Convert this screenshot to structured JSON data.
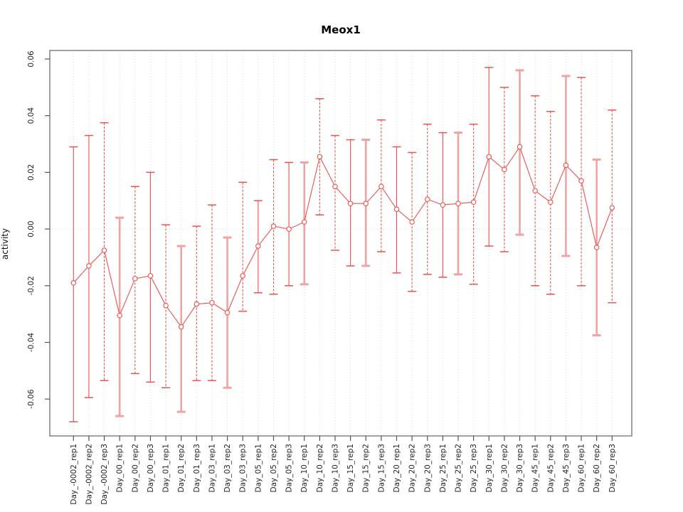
{
  "chart_data": {
    "type": "line",
    "title": "Meox1",
    "xlabel": "",
    "ylabel": "activity",
    "ylim": [
      -0.073,
      0.063
    ],
    "yticks": [
      -0.06,
      -0.04,
      -0.02,
      0.0,
      0.02,
      0.04,
      0.06
    ],
    "ytick_labels": [
      "-0.06",
      "-0.04",
      "-0.02",
      "0.00",
      "0.02",
      "0.04",
      "0.06"
    ],
    "grid": {
      "vertical_dotted_per_category": true,
      "horizontal_dotted_zero_line": true,
      "grid_color": "#d9d9d9"
    },
    "legend": "none",
    "marker": "open-circle",
    "error_bars": true,
    "series_color": "#e9534f",
    "thick_bar_color": "#f2a2a2",
    "categories": [
      "Day_-0002_rep1",
      "Day_-0002_rep2",
      "Day_-0002_rep3",
      "Day_00_rep1",
      "Day_00_rep2",
      "Day_00_rep3",
      "Day_01_rep1",
      "Day_01_rep2",
      "Day_01_rep3",
      "Day_03_rep1",
      "Day_03_rep2",
      "Day_03_rep3",
      "Day_05_rep1",
      "Day_05_rep2",
      "Day_05_rep3",
      "Day_10_rep1",
      "Day_10_rep2",
      "Day_10_rep3",
      "Day_15_rep1",
      "Day_15_rep2",
      "Day_15_rep3",
      "Day_20_rep1",
      "Day_20_rep2",
      "Day_20_rep3",
      "Day_25_rep1",
      "Day_25_rep2",
      "Day_25_rep3",
      "Day_30_rep1",
      "Day_30_rep2",
      "Day_30_rep3",
      "Day_45_rep1",
      "Day_45_rep2",
      "Day_45_rep3",
      "Day_60_rep1",
      "Day_60_rep2",
      "Day_60_rep3"
    ],
    "series": [
      {
        "name": "activity",
        "values": [
          -0.019,
          -0.013,
          -0.0075,
          -0.0305,
          -0.0175,
          -0.0165,
          -0.027,
          -0.0345,
          -0.0265,
          -0.026,
          -0.0295,
          -0.0165,
          -0.006,
          0.001,
          0.0,
          0.0025,
          0.0255,
          0.015,
          0.009,
          0.009,
          0.015,
          0.007,
          0.0025,
          0.0105,
          0.0085,
          0.009,
          0.0095,
          0.0255,
          0.021,
          0.029,
          0.0135,
          0.0095,
          0.0225,
          0.017,
          -0.0065,
          0.0075
        ],
        "upper": [
          0.029,
          0.033,
          0.0375,
          0.004,
          0.015,
          0.02,
          0.0015,
          -0.006,
          0.001,
          0.0085,
          -0.003,
          0.0165,
          0.01,
          0.0245,
          0.0235,
          0.0235,
          0.046,
          0.033,
          0.0315,
          0.0315,
          0.0385,
          0.029,
          0.027,
          0.037,
          0.034,
          0.034,
          0.037,
          0.057,
          0.05,
          0.056,
          0.047,
          0.0415,
          0.054,
          0.0535,
          0.0245,
          0.042
        ],
        "lower": [
          -0.068,
          -0.0595,
          -0.0535,
          -0.066,
          -0.051,
          -0.054,
          -0.056,
          -0.0645,
          -0.0535,
          -0.0535,
          -0.056,
          -0.029,
          -0.0225,
          -0.023,
          -0.02,
          -0.0195,
          0.005,
          -0.0075,
          -0.013,
          -0.013,
          -0.008,
          -0.0155,
          -0.022,
          -0.016,
          -0.017,
          -0.016,
          -0.0195,
          -0.006,
          -0.008,
          -0.002,
          -0.02,
          -0.023,
          -0.0095,
          -0.02,
          -0.0375,
          -0.026
        ],
        "bar_styles": [
          "solid",
          "solid",
          "dashed",
          "thick",
          "dashed",
          "solid",
          "dashed",
          "thick",
          "dashed",
          "dashed",
          "thick",
          "dashed",
          "solid",
          "dashed",
          "solid",
          "thick",
          "dashed",
          "dashed",
          "solid",
          "thick",
          "dashed",
          "solid",
          "dashed",
          "dashed",
          "solid",
          "thick",
          "dashed",
          "solid",
          "dashed",
          "thick",
          "dashed",
          "dashed",
          "thick",
          "dashed",
          "thick",
          "dashed"
        ]
      }
    ]
  }
}
